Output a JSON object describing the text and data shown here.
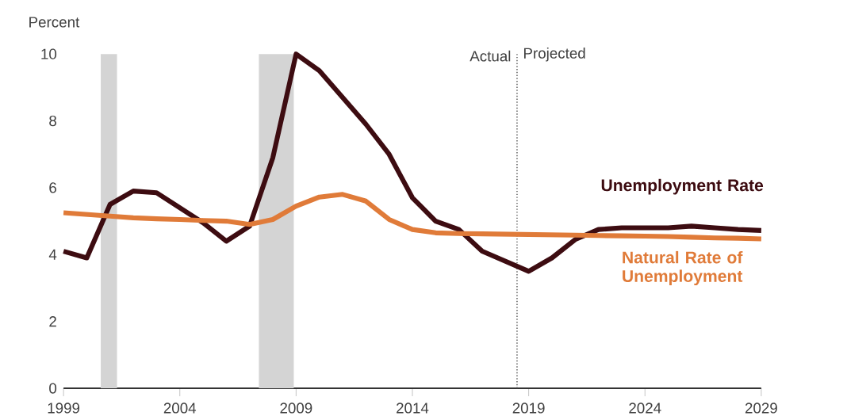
{
  "chart_data": {
    "type": "line",
    "ylabel": "Percent",
    "x": [
      1999,
      2000,
      2001,
      2002,
      2003,
      2004,
      2005,
      2006,
      2007,
      2008,
      2009,
      2010,
      2011,
      2012,
      2013,
      2014,
      2015,
      2016,
      2017,
      2018,
      2019,
      2020,
      2021,
      2022,
      2023,
      2024,
      2025,
      2026,
      2027,
      2028,
      2029
    ],
    "series": [
      {
        "name": "Unemployment Rate",
        "color": "#3d0c11",
        "values": [
          4.1,
          3.9,
          5.5,
          5.9,
          5.85,
          5.4,
          4.95,
          4.4,
          4.85,
          6.9,
          10.0,
          9.5,
          8.7,
          7.9,
          7.0,
          5.7,
          5.0,
          4.75,
          4.1,
          3.8,
          3.5,
          3.9,
          4.45,
          4.75,
          4.8,
          4.8,
          4.8,
          4.85,
          4.8,
          4.75,
          4.72
        ]
      },
      {
        "name": "Natural Rate of Unemployment",
        "color": "#e07b39",
        "values": [
          5.25,
          5.2,
          5.15,
          5.1,
          5.07,
          5.05,
          5.02,
          5.0,
          4.9,
          5.05,
          5.45,
          5.72,
          5.8,
          5.6,
          5.05,
          4.75,
          4.65,
          4.63,
          4.62,
          4.61,
          4.6,
          4.59,
          4.58,
          4.57,
          4.56,
          4.55,
          4.54,
          4.52,
          4.5,
          4.49,
          4.47
        ]
      }
    ],
    "xlim": [
      1999,
      2029
    ],
    "xticks": [
      1999,
      2004,
      2009,
      2014,
      2019,
      2024,
      2029
    ],
    "ylim": [
      0,
      10
    ],
    "yticks": [
      0,
      2,
      4,
      6,
      8,
      10
    ],
    "bands": [
      {
        "axis": "x",
        "from": 2000.6,
        "to": 2001.3,
        "color": "#d4d4d4"
      },
      {
        "axis": "x",
        "from": 2007.4,
        "to": 2008.9,
        "color": "#d4d4d4"
      }
    ],
    "ref_lines": [
      {
        "axis": "x",
        "value": 2018.5,
        "color": "#555555",
        "line_style": "dotted"
      }
    ],
    "annotations": [
      "Actual",
      "Projected"
    ],
    "grid": false,
    "line_style": "solid",
    "marker": "none"
  }
}
